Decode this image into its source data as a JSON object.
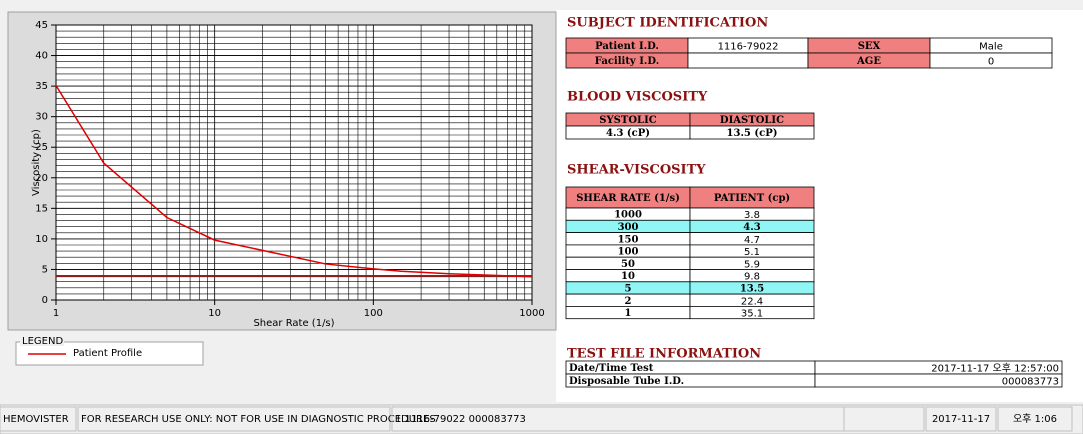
{
  "chart_data": {
    "type": "line",
    "x_label": "Shear Rate (1/s)",
    "y_label": "Viscosity (cp)",
    "x": [
      1,
      2,
      5,
      10,
      50,
      100,
      150,
      300,
      1000
    ],
    "series": [
      {
        "name": "Patient Profile",
        "color": "#e00000",
        "values": [
          35.1,
          22.4,
          13.5,
          9.8,
          5.9,
          5.1,
          4.7,
          4.3,
          3.8
        ]
      }
    ],
    "hlines": [
      {
        "value": 3.9,
        "color": "#8b1a1a"
      }
    ],
    "xlim": [
      1,
      1000
    ],
    "xticks": [
      1,
      10,
      100,
      1000
    ],
    "x_log": true,
    "ylim": [
      0,
      45
    ],
    "yticks": [
      0,
      5,
      10,
      15,
      20,
      25,
      30,
      35,
      40,
      45
    ],
    "grid": true,
    "legend_title": "LEGEND"
  },
  "subject": {
    "title": "SUBJECT IDENTIFICATION",
    "rows": [
      {
        "label": "Patient I.D.",
        "value": "1116-79022",
        "label2": "SEX",
        "value2": "Male"
      },
      {
        "label": "Facility I.D.",
        "label2": "AGE",
        "value2": "0"
      }
    ]
  },
  "blood_viscosity": {
    "title": "BLOOD VISCOSITY",
    "headers": [
      "SYSTOLIC",
      "DIASTOLIC"
    ],
    "values": [
      "4.3 (cP)",
      "13.5 (cP)"
    ]
  },
  "shear_viscosity": {
    "title": "SHEAR-VISCOSITY",
    "headers": [
      "SHEAR RATE (1/s)",
      "PATIENT (cp)"
    ],
    "rows": [
      [
        "1000",
        "3.8"
      ],
      [
        "300",
        "4.3"
      ],
      [
        "150",
        "4.7"
      ],
      [
        "100",
        "5.1"
      ],
      [
        "50",
        "5.9"
      ],
      [
        "10",
        "9.8"
      ],
      [
        "5",
        "13.5"
      ],
      [
        "2",
        "22.4"
      ],
      [
        "1",
        "35.1"
      ]
    ],
    "highlight_rows": [
      1,
      6
    ],
    "highlight_color": "#8ff5f5"
  },
  "test_file": {
    "title": "TEST FILE INFORMATION",
    "rows": [
      [
        "Date/Time Test",
        "2017-11-17   오후 12:57:00"
      ],
      [
        "Disposable Tube I.D.",
        "000083773"
      ]
    ]
  },
  "status_bar": [
    "HEMOVISTER",
    "FOR RESEARCH USE ONLY: NOT FOR USE IN DIAGNOSTIC PROCEDURES",
    "1  1116-79022  000083773",
    "2017-11-17",
    "오후 1:06"
  ]
}
